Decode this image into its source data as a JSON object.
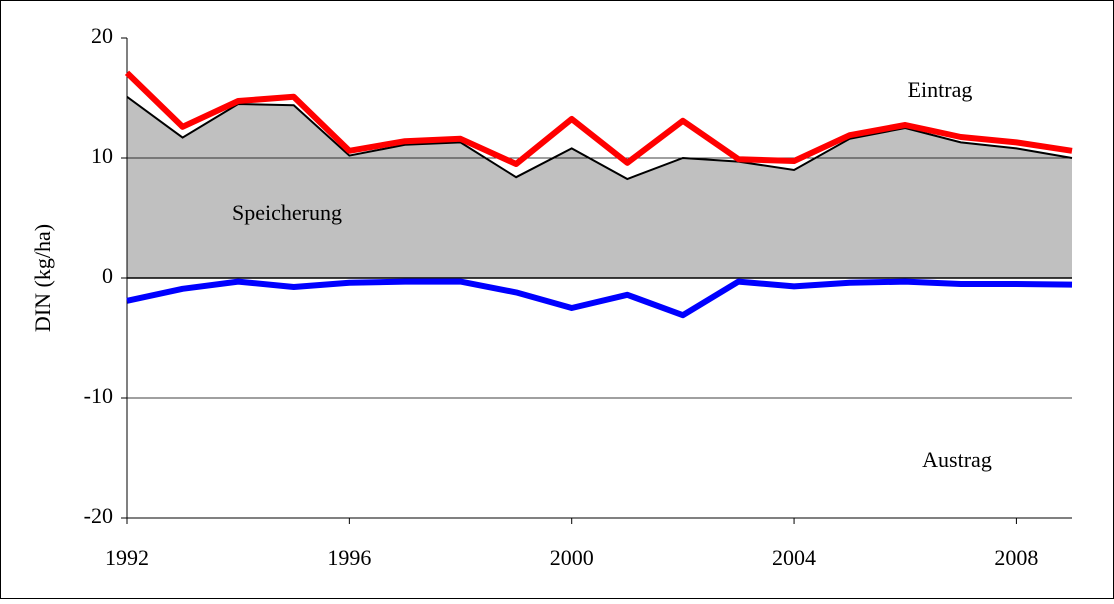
{
  "chart_data": {
    "type": "line",
    "y_label": "DIN  (kg/ha)",
    "x": [
      1992,
      1993,
      1994,
      1995,
      1996,
      1997,
      1998,
      1999,
      2000,
      2001,
      2002,
      2003,
      2004,
      2005,
      2006,
      2007,
      2008,
      2009
    ],
    "xlim": [
      1992,
      2009
    ],
    "xticks": [
      1992,
      1996,
      2000,
      2004,
      2008
    ],
    "ylim": [
      -20,
      20
    ],
    "yticks": [
      -20,
      -10,
      0,
      10,
      20
    ],
    "grid": true,
    "series": [
      {
        "name": "Speicherung",
        "color": "#c0c0c0",
        "fill": "area",
        "values": [
          15.1,
          11.7,
          14.5,
          14.4,
          10.2,
          11.1,
          11.3,
          8.4,
          10.8,
          8.25,
          10.0,
          9.7,
          9.0,
          11.6,
          12.5,
          11.3,
          10.8,
          10.0
        ]
      },
      {
        "name": "Eintrag",
        "color": "#ff0000",
        "values": [
          17.1,
          12.6,
          14.75,
          15.1,
          10.6,
          11.4,
          11.6,
          9.5,
          13.25,
          9.6,
          13.1,
          9.9,
          9.75,
          11.9,
          12.75,
          11.75,
          11.3,
          10.6
        ]
      },
      {
        "name": "Austrag",
        "color": "#0000ff",
        "values": [
          -1.9,
          -0.9,
          -0.3,
          -0.75,
          -0.4,
          -0.3,
          -0.3,
          -1.2,
          -2.5,
          -1.4,
          -3.1,
          -0.3,
          -0.7,
          -0.4,
          -0.3,
          -0.5,
          -0.5,
          -0.55
        ]
      }
    ]
  }
}
